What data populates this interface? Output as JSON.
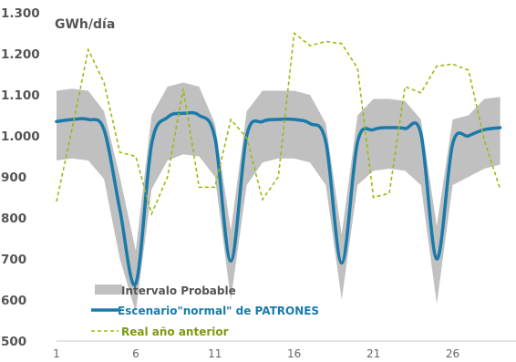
{
  "chart_data": {
    "type": "line",
    "title": "",
    "unit_label": "GWh/día",
    "ylim": [
      500,
      1300
    ],
    "yticks": [
      500,
      600,
      700,
      800,
      900,
      1000,
      1100,
      1200,
      1300
    ],
    "ytick_labels": [
      "500",
      "600",
      "700",
      "800",
      "900",
      "1.000",
      "1.100",
      "1.200",
      "1.300"
    ],
    "xlim": [
      1,
      30
    ],
    "xticks": [
      1,
      6,
      11,
      16,
      21,
      26
    ],
    "xtick_labels": [
      "1",
      "6",
      "11",
      "16",
      "21",
      "26"
    ],
    "grid": false,
    "legend_position": "bottom-left",
    "series": [
      {
        "name": "Intervalo Probable",
        "kind": "band",
        "color": "#c0c0c0",
        "x": [
          1,
          2,
          3,
          4,
          5,
          6,
          7,
          8,
          9,
          10,
          11,
          12,
          13,
          14,
          15,
          16,
          17,
          18,
          19,
          20,
          21,
          22,
          23,
          24,
          25,
          26,
          27,
          28,
          29
        ],
        "upper": [
          1110,
          1115,
          1110,
          1060,
          900,
          720,
          1050,
          1120,
          1130,
          1120,
          1030,
          770,
          1060,
          1110,
          1110,
          1110,
          1100,
          1030,
          760,
          1050,
          1090,
          1090,
          1085,
          1040,
          780,
          1040,
          1050,
          1090,
          1095
        ],
        "lower": [
          940,
          945,
          940,
          895,
          700,
          570,
          870,
          940,
          955,
          950,
          900,
          600,
          880,
          935,
          945,
          945,
          935,
          880,
          600,
          880,
          915,
          920,
          915,
          880,
          590,
          880,
          900,
          920,
          930
        ]
      },
      {
        "name": "Escenario\"normal\" de PATRONES",
        "kind": "line",
        "color": "#1a7aaa",
        "x": [
          1,
          2,
          3,
          4,
          5,
          6,
          7,
          8,
          9,
          10,
          11,
          12,
          13,
          14,
          15,
          16,
          17,
          18,
          19,
          20,
          21,
          22,
          23,
          24,
          25,
          26,
          27,
          28,
          29
        ],
        "values": [
          1035,
          1040,
          1040,
          1015,
          820,
          640,
          980,
          1045,
          1055,
          1050,
          995,
          695,
          1000,
          1035,
          1040,
          1040,
          1030,
          985,
          690,
          985,
          1015,
          1020,
          1018,
          1005,
          700,
          980,
          1000,
          1015,
          1020
        ]
      },
      {
        "name": "Real año anterior",
        "kind": "dashed",
        "color": "#99bb11",
        "x": [
          1,
          2,
          3,
          4,
          5,
          6,
          7,
          8,
          9,
          10,
          11,
          12,
          13,
          14,
          15,
          16,
          17,
          18,
          19,
          20,
          21,
          22,
          23,
          24,
          25,
          26,
          27,
          28,
          29
        ],
        "values": [
          840,
          1020,
          1210,
          1130,
          960,
          950,
          810,
          900,
          1115,
          875,
          875,
          1040,
          995,
          845,
          900,
          1250,
          1220,
          1230,
          1225,
          1165,
          850,
          860,
          1120,
          1105,
          1170,
          1175,
          1160,
          990,
          870
        ]
      }
    ]
  }
}
